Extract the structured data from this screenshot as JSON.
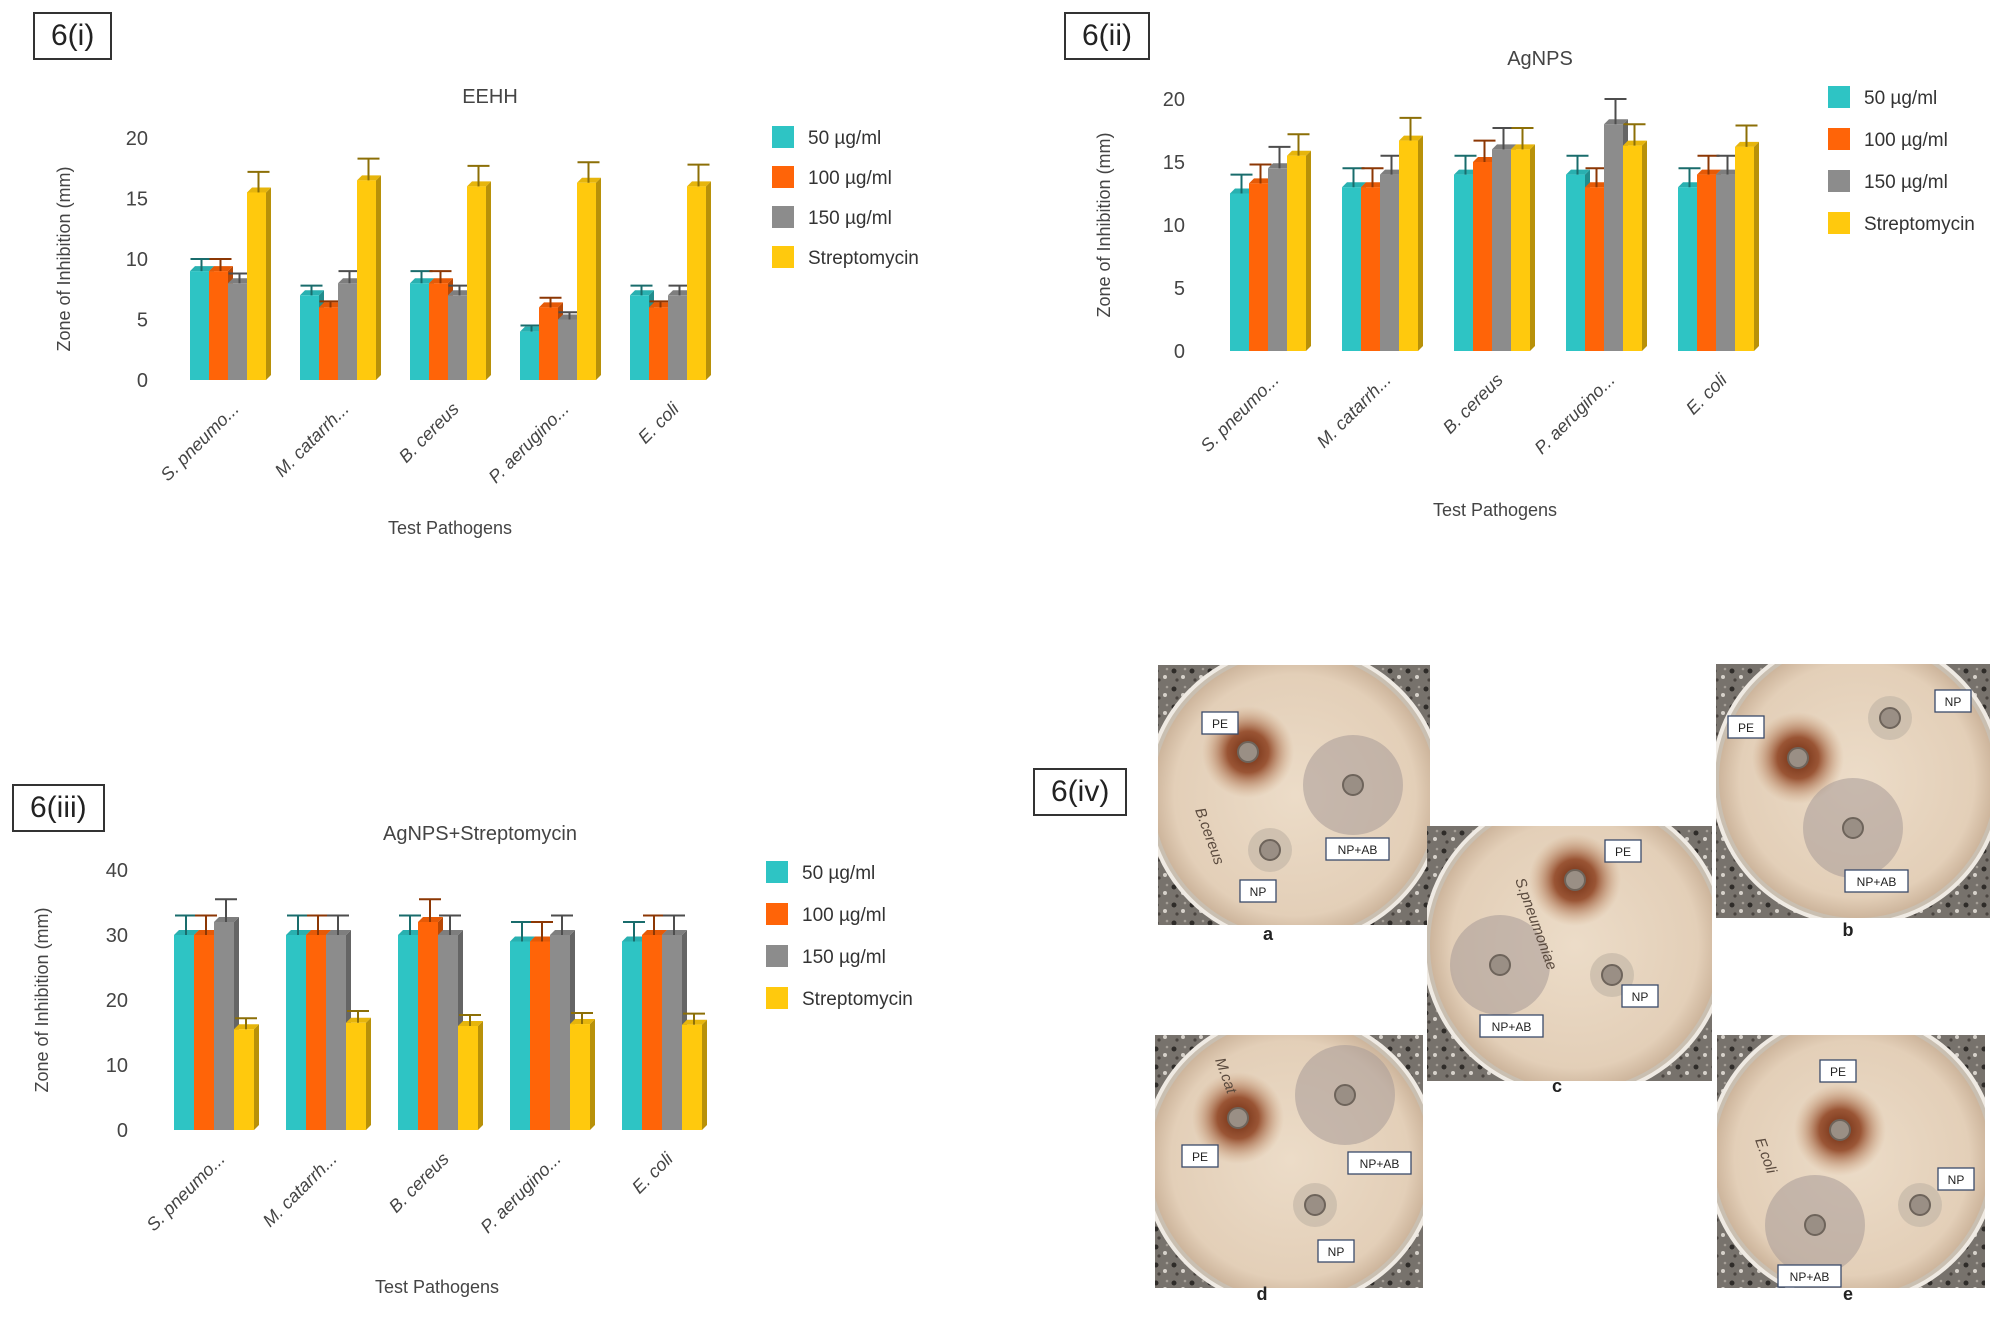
{
  "panels": {
    "p1": "6(i)",
    "p2": "6(ii)",
    "p3": "6(iii)",
    "p4": "6(iv)"
  },
  "colors": {
    "s50": "#2EC4C4",
    "s100": "#FF6408",
    "s150": "#8C8C8C",
    "strep": "#FFC90D",
    "error": "#5a5a5a"
  },
  "chart_data": [
    {
      "type": "bar",
      "title": "EEHH",
      "xlabel": "Test Pathogens",
      "ylabel": "Zone of Inhibition (mm)",
      "ylim": [
        0,
        20
      ],
      "yticks": [
        0,
        5,
        10,
        15,
        20
      ],
      "categories": [
        "S. pneumo...",
        "M. catarrh...",
        "B. cereus",
        "P. aerugino...",
        "E. coli"
      ],
      "series": [
        {
          "name": "50 µg/ml",
          "values": [
            9,
            7,
            8,
            4,
            7
          ],
          "errors": [
            1,
            0.8,
            1,
            0.5,
            0.8
          ]
        },
        {
          "name": "100 µg/ml",
          "values": [
            9,
            6,
            8,
            6,
            6
          ],
          "errors": [
            1,
            0.5,
            1,
            0.8,
            0.5
          ]
        },
        {
          "name": "150 µg/ml",
          "values": [
            8,
            8,
            7,
            5,
            7
          ],
          "errors": [
            0.8,
            1,
            0.8,
            0.6,
            0.8
          ]
        },
        {
          "name": "Streptomycin",
          "values": [
            15.5,
            16.5,
            16,
            16.3,
            16
          ],
          "errors": [
            1.7,
            1.8,
            1.7,
            1.7,
            1.8
          ]
        }
      ],
      "legend": "right"
    },
    {
      "type": "bar",
      "title": "AgNPS",
      "xlabel": "Test Pathogens",
      "ylabel": "Zone of Inhibition (mm)",
      "ylim": [
        0,
        20
      ],
      "yticks": [
        0,
        5,
        10,
        15,
        20
      ],
      "categories": [
        "S. pneumo...",
        "M. catarrh...",
        "B. cereus",
        "P. aerugino...",
        "E. coli"
      ],
      "series": [
        {
          "name": "50 µg/ml",
          "values": [
            12.5,
            13,
            14,
            14,
            13
          ],
          "errors": [
            1.5,
            1.5,
            1.5,
            1.5,
            1.5
          ]
        },
        {
          "name": "100 µg/ml",
          "values": [
            13.3,
            13,
            15,
            13,
            14
          ],
          "errors": [
            1.5,
            1.5,
            1.7,
            1.5,
            1.5
          ]
        },
        {
          "name": "150 µg/ml",
          "values": [
            14.5,
            14,
            16,
            18,
            14
          ],
          "errors": [
            1.7,
            1.5,
            1.7,
            2,
            1.5
          ]
        },
        {
          "name": "Streptomycin",
          "values": [
            15.5,
            16.7,
            16,
            16.3,
            16.2
          ],
          "errors": [
            1.7,
            1.8,
            1.7,
            1.7,
            1.7
          ]
        }
      ],
      "legend": "right"
    },
    {
      "type": "bar",
      "title": "AgNPS+Streptomycin",
      "xlabel": "Test Pathogens",
      "ylabel": "Zone of Inhibition (mm)",
      "ylim": [
        0,
        40
      ],
      "yticks": [
        0,
        10,
        20,
        30,
        40
      ],
      "categories": [
        "S. pneumo...",
        "M. catarrh...",
        "B. cereus",
        "P. aerugino...",
        "E. coli"
      ],
      "series": [
        {
          "name": "50 µg/ml",
          "values": [
            30,
            30,
            30,
            29,
            29
          ],
          "errors": [
            3,
            3,
            3,
            3,
            3
          ]
        },
        {
          "name": "100 µg/ml",
          "values": [
            30,
            30,
            32,
            29,
            30
          ],
          "errors": [
            3,
            3,
            3.5,
            3,
            3
          ]
        },
        {
          "name": "150 µg/ml",
          "values": [
            32,
            30,
            30,
            30,
            30
          ],
          "errors": [
            3.5,
            3,
            3,
            3,
            3
          ]
        },
        {
          "name": "Streptomycin",
          "values": [
            15.5,
            16.5,
            16,
            16.3,
            16.2
          ],
          "errors": [
            1.7,
            1.8,
            1.7,
            1.7,
            1.7
          ]
        }
      ],
      "legend": "right"
    }
  ],
  "plates": [
    {
      "caption": "a",
      "labels": [
        "PE",
        "NP+AB",
        "NP"
      ],
      "side_text": "B.cereus"
    },
    {
      "caption": "b",
      "labels": [
        "PE",
        "NP",
        "NP+AB"
      ],
      "side_text": ""
    },
    {
      "caption": "c",
      "labels": [
        "PE",
        "NP+AB",
        "NP"
      ],
      "side_text": "S.pneumoniae"
    },
    {
      "caption": "d",
      "labels": [
        "PE",
        "NP+AB",
        "NP"
      ],
      "side_text": "M.cat"
    },
    {
      "caption": "e",
      "labels": [
        "PE",
        "NP",
        "NP+AB"
      ],
      "side_text": "E.coli"
    }
  ]
}
